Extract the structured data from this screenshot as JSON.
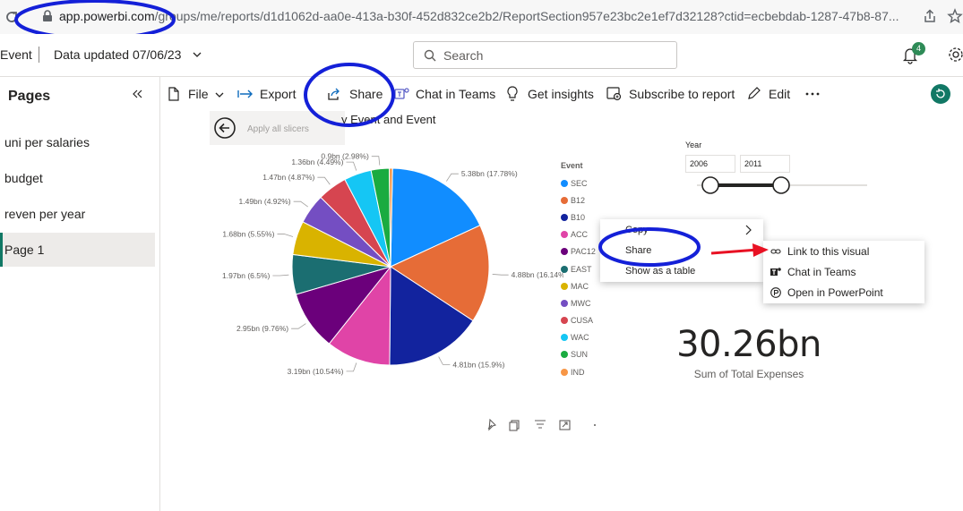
{
  "browser": {
    "url_host": "app.powerbi.com",
    "url_path": "/groups/me/reports/d1d1062d-aa0e-413a-b30f-452d832ce2b2/ReportSection957e23bc2e1ef7d32128?ctid=ecbebdab-1287-47b8-87..."
  },
  "header": {
    "report_name": "Event",
    "data_updated": "Data updated 07/06/23",
    "search_placeholder": "Search",
    "notification_count": "4"
  },
  "pages_pane": {
    "title": "Pages",
    "pages": [
      "uni per salaries",
      "budget",
      "reven per year",
      "Page 1"
    ],
    "active_page": "Page 1"
  },
  "toolbar": {
    "file": "File",
    "export": "Export",
    "share": "Share",
    "chat_in_teams": "Chat in Teams",
    "get_insights": "Get insights",
    "subscribe": "Subscribe to report",
    "edit": "Edit"
  },
  "canvas": {
    "apply_slicers": "Apply all slicers",
    "chart_title": "y Event and Event"
  },
  "chart_data": {
    "type": "pie",
    "title": "y Event and Event",
    "legend_title": "Event",
    "legend_position": "right",
    "slices": [
      {
        "name": "SEC",
        "label": "5.38bn (17.78%)",
        "value": 5.38,
        "color": "#118dff"
      },
      {
        "name": "B12",
        "label": "4.88bn (16.14%)",
        "value": 4.88,
        "color": "#e66c37"
      },
      {
        "name": "B10",
        "label": "4.81bn (15.9%)",
        "value": 4.81,
        "color": "#12239e"
      },
      {
        "name": "ACC",
        "label": "3.19bn (10.54%)",
        "value": 3.19,
        "color": "#e044a7"
      },
      {
        "name": "PAC12",
        "label": "2.95bn (9.76%)",
        "value": 2.95,
        "color": "#6b007b"
      },
      {
        "name": "EAST",
        "label": "1.97bn (6.5%)",
        "value": 1.97,
        "color": "#1b6e71"
      },
      {
        "name": "MAC",
        "label": "1.68bn (5.55%)",
        "value": 1.68,
        "color": "#d9b300"
      },
      {
        "name": "MWC",
        "label": "1.49bn (4.92%)",
        "value": 1.49,
        "color": "#744ec2"
      },
      {
        "name": "CUSA",
        "label": "1.47bn (4.87%)",
        "value": 1.47,
        "color": "#d64550"
      },
      {
        "name": "WAC",
        "label": "1.36bn (4.49%)",
        "value": 1.36,
        "color": "#15c6f4"
      },
      {
        "name": "SUN",
        "label": "0.9bn (2.98%)",
        "value": 0.9,
        "color": "#1aab40"
      },
      {
        "name": "IND",
        "label": "",
        "value": 0.16,
        "color": "#f79646"
      }
    ]
  },
  "slicer": {
    "title": "Year",
    "from": "2006",
    "to": "2011"
  },
  "kpi": {
    "value": "30.26bn",
    "label": "Sum of Total Expenses"
  },
  "context_menu": {
    "items": [
      "Copy",
      "Share",
      "Show as a table"
    ]
  },
  "share_submenu": {
    "items": [
      "Link to this visual",
      "Chat in Teams",
      "Open in PowerPoint"
    ]
  }
}
